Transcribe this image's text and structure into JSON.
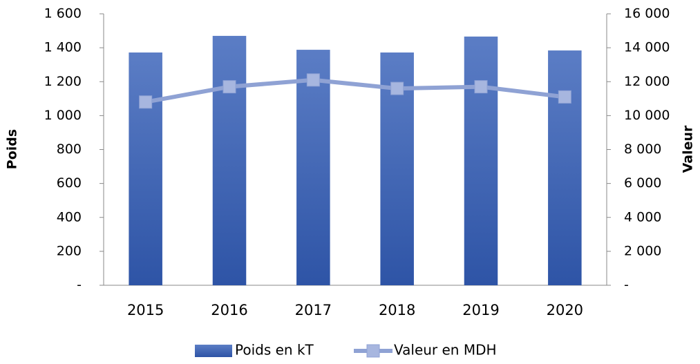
{
  "chart_data": {
    "type": "bar",
    "categories": [
      "2015",
      "2016",
      "2017",
      "2018",
      "2019",
      "2020"
    ],
    "y_label": "Poids",
    "y2_label": "Valeur",
    "ylim": [
      0,
      1600
    ],
    "yticks": [
      {
        "value": 0,
        "label": "-"
      },
      200,
      400,
      600,
      800,
      {
        "value": 1000,
        "label": "1 000"
      },
      {
        "value": 1200,
        "label": "1 200"
      },
      {
        "value": 1400,
        "label": "1 400"
      },
      {
        "value": 1600,
        "label": "1 600"
      }
    ],
    "y2lim": [
      0,
      16000
    ],
    "y2ticks": [
      {
        "value": 0,
        "label": "-"
      },
      {
        "value": 2000,
        "label": "2 000"
      },
      {
        "value": 4000,
        "label": "4 000"
      },
      {
        "value": 6000,
        "label": "6 000"
      },
      {
        "value": 8000,
        "label": "8 000"
      },
      {
        "value": 10000,
        "label": "10 000"
      },
      {
        "value": 12000,
        "label": "12 000"
      },
      {
        "value": 14000,
        "label": "14 000"
      },
      {
        "value": 16000,
        "label": "16 000"
      }
    ],
    "series": [
      {
        "name": "Poids en kT",
        "type": "bar",
        "color": "#3f63b4",
        "values": [
          1372,
          1470,
          1388,
          1372,
          1466,
          1384
        ]
      },
      {
        "name": "Valeur en MDH",
        "type": "line",
        "axis": "y2",
        "color": "#8fa2d4",
        "values": [
          10800,
          11700,
          12100,
          11600,
          11700,
          11100
        ]
      }
    ],
    "legend": "bottom"
  }
}
